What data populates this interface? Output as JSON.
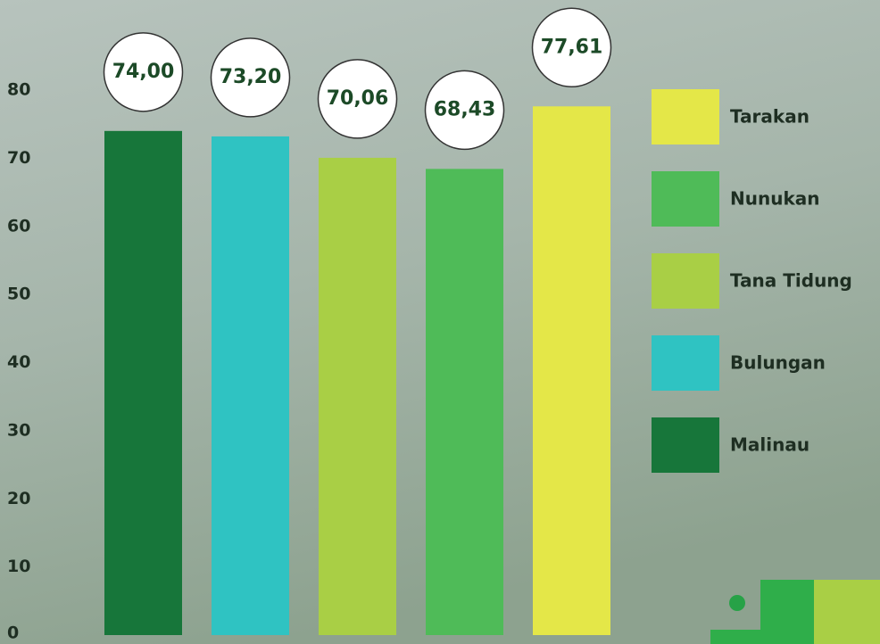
{
  "chart_data": {
    "type": "bar",
    "categories": [
      "Malinau",
      "Bulungan",
      "Tana Tidung",
      "Nunukan",
      "Tarakan"
    ],
    "values": [
      74.0,
      73.2,
      70.06,
      68.43,
      77.61
    ],
    "value_labels": [
      "74,00",
      "73,20",
      "70,06",
      "68,43",
      "77,61"
    ],
    "colors": [
      "#17763a",
      "#2fc3c2",
      "#a9cf45",
      "#4fbb58",
      "#e4e748"
    ],
    "ylim": [
      0,
      80
    ],
    "yticks": [
      0,
      10,
      20,
      30,
      40,
      50,
      60,
      70,
      80
    ],
    "grid": false
  }
}
